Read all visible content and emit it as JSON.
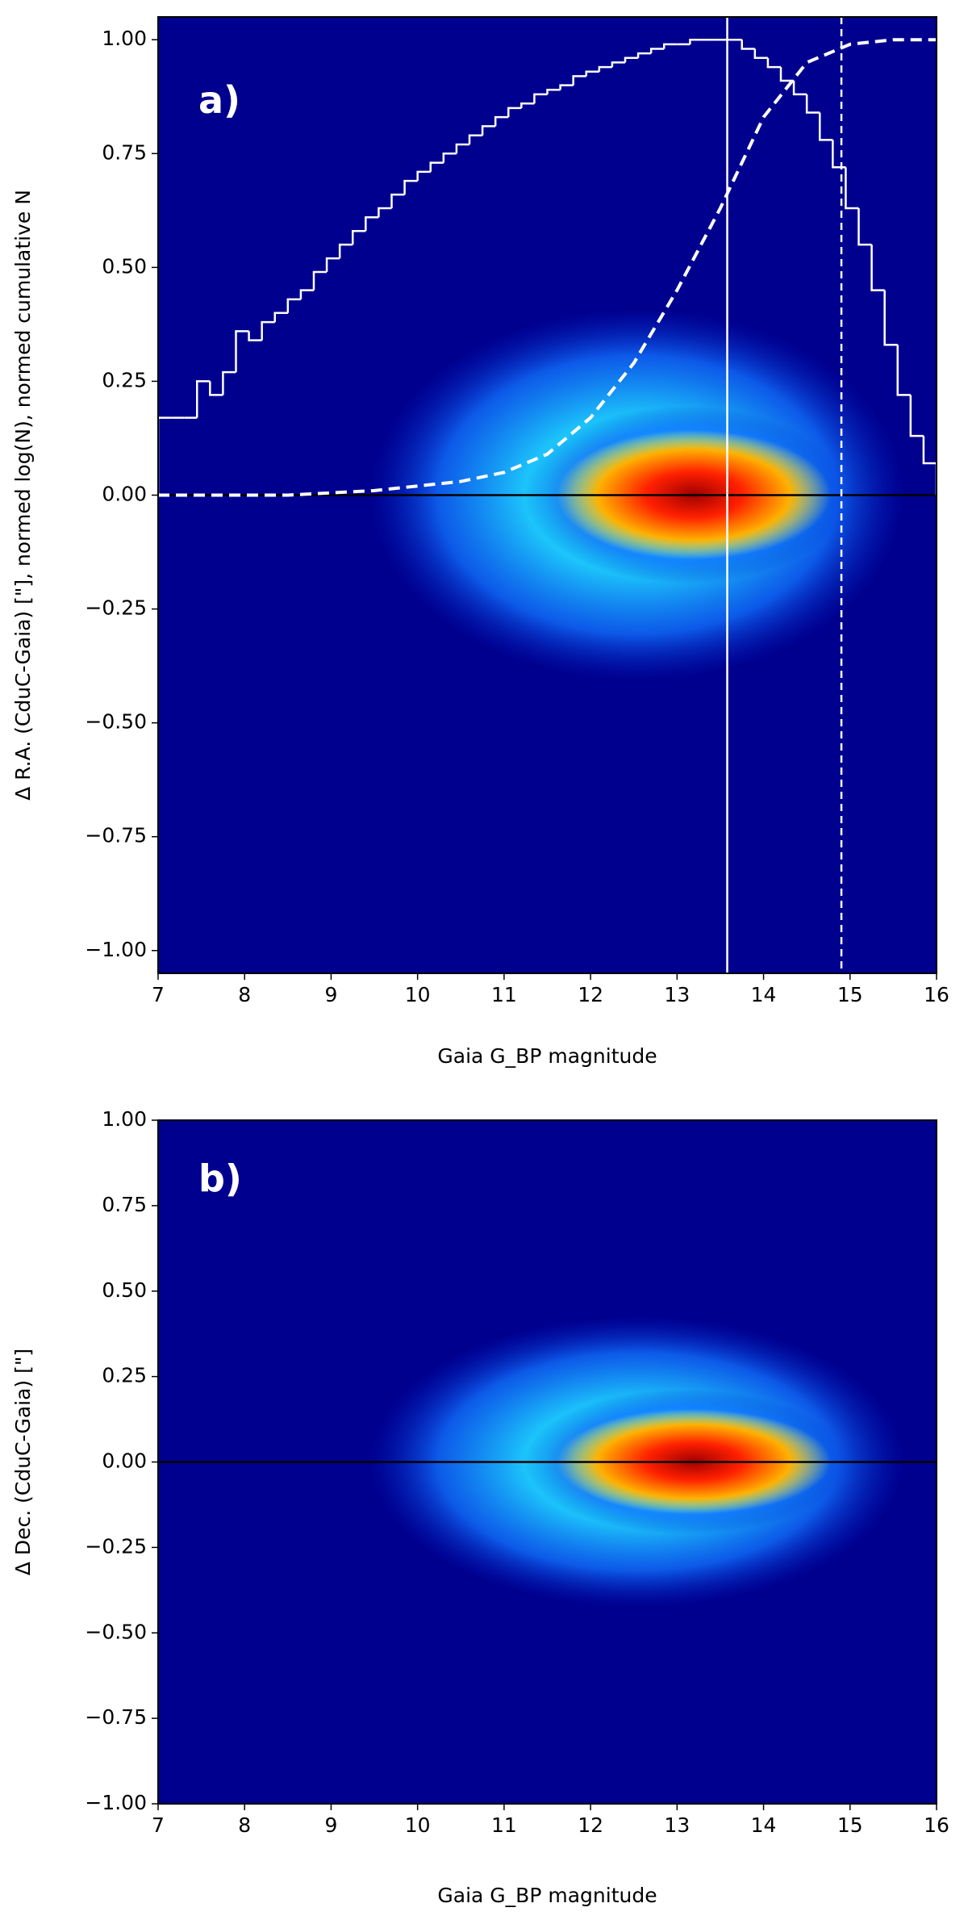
{
  "chart_data": [
    {
      "type": "histogram2d",
      "annotation": "a)",
      "xlabel": "Gaia G_BP magnitude",
      "ylabel": "Δ R.A. (CduC-Gaia) [\"], normed log(N), normed cumulative N",
      "xlim": [
        7,
        16
      ],
      "ylim": [
        -1.05,
        1.05
      ],
      "xticks": [
        7,
        8,
        9,
        10,
        11,
        12,
        13,
        14,
        15,
        16
      ],
      "yticks": [
        {
          "value": -1,
          "label": "−1.00"
        },
        {
          "value": -0.75,
          "label": "−0.75"
        },
        {
          "value": -0.5,
          "label": "−0.50"
        },
        {
          "value": -0.25,
          "label": "−0.25"
        },
        {
          "value": 0,
          "label": "0.00"
        },
        {
          "value": 0.25,
          "label": "0.25"
        },
        {
          "value": 0.5,
          "label": "0.50"
        },
        {
          "value": 0.75,
          "label": "0.75"
        },
        {
          "value": 1,
          "label": "1.00"
        }
      ],
      "hline": 0,
      "hline_color": "#000000",
      "vlines": [
        {
          "x": 13.58,
          "style": "solid",
          "color": "#ffffff"
        },
        {
          "x": 14.9,
          "style": "dashed",
          "color": "#ffffff"
        }
      ],
      "series": [
        {
          "type": "step",
          "color": "#ffffff",
          "bins": [
            7.0,
            7.15,
            7.3,
            7.45,
            7.6,
            7.75,
            7.9,
            8.05,
            8.2,
            8.35,
            8.5,
            8.65,
            8.8,
            8.95,
            9.1,
            9.25,
            9.4,
            9.55,
            9.7,
            9.85,
            10.0,
            10.15,
            10.3,
            10.45,
            10.6,
            10.75,
            10.9,
            11.05,
            11.2,
            11.35,
            11.5,
            11.65,
            11.8,
            11.95,
            12.1,
            12.25,
            12.4,
            12.55,
            12.7,
            12.85,
            13.0,
            13.15,
            13.3,
            13.45,
            13.6,
            13.75,
            13.9,
            14.05,
            14.2,
            14.35,
            14.5,
            14.65,
            14.8,
            14.95,
            15.1,
            15.25,
            15.4,
            15.55,
            15.7,
            15.85,
            16.0
          ],
          "values": [
            0.17,
            0.17,
            0.17,
            0.25,
            0.22,
            0.27,
            0.36,
            0.34,
            0.38,
            0.4,
            0.43,
            0.45,
            0.49,
            0.52,
            0.55,
            0.58,
            0.61,
            0.63,
            0.66,
            0.69,
            0.71,
            0.73,
            0.75,
            0.77,
            0.79,
            0.81,
            0.83,
            0.85,
            0.86,
            0.88,
            0.89,
            0.9,
            0.92,
            0.93,
            0.94,
            0.95,
            0.96,
            0.97,
            0.98,
            0.99,
            0.99,
            1.0,
            1.0,
            1.0,
            1.0,
            0.98,
            0.96,
            0.94,
            0.91,
            0.88,
            0.84,
            0.78,
            0.72,
            0.63,
            0.55,
            0.45,
            0.33,
            0.22,
            0.13,
            0.07
          ]
        },
        {
          "type": "line",
          "color": "#ffffff",
          "style": "dashed",
          "x": [
            7,
            7.5,
            8,
            8.5,
            9,
            9.5,
            10,
            10.5,
            11,
            11.5,
            12,
            12.5,
            13,
            13.5,
            14,
            14.5,
            15,
            15.5,
            16
          ],
          "values": [
            0,
            0,
            0,
            0,
            0.005,
            0.01,
            0.02,
            0.03,
            0.05,
            0.09,
            0.17,
            0.29,
            0.45,
            0.63,
            0.83,
            0.95,
            0.99,
            1.0,
            1.0
          ]
        }
      ]
    },
    {
      "type": "histogram2d",
      "annotation": "b)",
      "xlabel": "Gaia G_BP magnitude",
      "ylabel": "Δ Dec. (CduC-Gaia) [\"]",
      "xlim": [
        7,
        16
      ],
      "ylim": [
        -1,
        1
      ],
      "xticks": [
        7,
        8,
        9,
        10,
        11,
        12,
        13,
        14,
        15,
        16
      ],
      "yticks": [
        {
          "value": -1,
          "label": "−1.00"
        },
        {
          "value": -0.75,
          "label": "−0.75"
        },
        {
          "value": -0.5,
          "label": "−0.50"
        },
        {
          "value": -0.25,
          "label": "−0.25"
        },
        {
          "value": 0,
          "label": "0.00"
        },
        {
          "value": 0.25,
          "label": "0.25"
        },
        {
          "value": 0.5,
          "label": "0.50"
        },
        {
          "value": 0.75,
          "label": "0.75"
        },
        {
          "value": 1,
          "label": "1.00"
        }
      ],
      "hline": 0,
      "hline_color": "#000000",
      "series": []
    }
  ]
}
